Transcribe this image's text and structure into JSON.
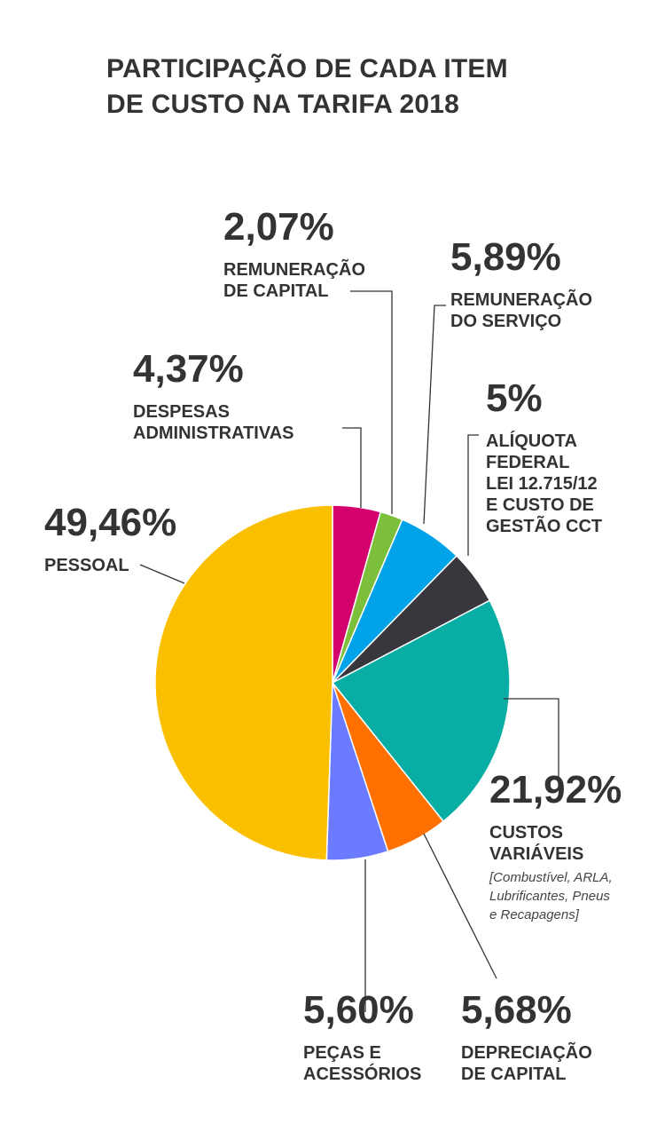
{
  "colors": {
    "text": "#333333",
    "leader": "#333333",
    "background": "#ffffff"
  },
  "chart_data": {
    "type": "pie",
    "title": "PARTICIPAÇÃO DE CADA ITEM DE CUSTO NA TARIFA 2018",
    "title_lines": [
      "PARTICIPAÇÃO DE CADA ITEM",
      "DE CUSTO NA TARIFA 2018"
    ],
    "start": "12 o'clock",
    "direction": "clockwise",
    "slices": [
      {
        "key": "despesas",
        "value": 4.37,
        "pct": "4,37%",
        "lines": [
          "DESPESAS",
          "ADMINISTRATIVAS"
        ],
        "color": "#D4006E"
      },
      {
        "key": "remcapital",
        "value": 2.07,
        "pct": "2,07%",
        "lines": [
          "REMUNERAÇÃO",
          "DE CAPITAL"
        ],
        "color": "#7CBF3B"
      },
      {
        "key": "remservico",
        "value": 5.89,
        "pct": "5,89%",
        "lines": [
          "REMUNERAÇÃO",
          "DO SERVIÇO"
        ],
        "color": "#00A3E8"
      },
      {
        "key": "aliquota",
        "value": 5.0,
        "pct": "5%",
        "lines": [
          "ALÍQUOTA",
          "FEDERAL",
          "LEI 12.715/12",
          "E CUSTO DE",
          "GESTÃO CCT"
        ],
        "color": "#37373D"
      },
      {
        "key": "custos",
        "value": 21.92,
        "pct": "21,92%",
        "lines": [
          "CUSTOS",
          "VARIÁVEIS"
        ],
        "note_lines": [
          "[Combustível, ARLA,",
          "Lubrificantes, Pneus",
          "e Recapagens]"
        ],
        "color": "#08ADA4"
      },
      {
        "key": "depreciacao",
        "value": 5.68,
        "pct": "5,68%",
        "lines": [
          "DEPRECIAÇÃO",
          "DE CAPITAL"
        ],
        "color": "#FF7000"
      },
      {
        "key": "pecas",
        "value": 5.6,
        "pct": "5,60%",
        "lines": [
          "PEÇAS E",
          "ACESSÓRIOS"
        ],
        "color": "#6B7BFF"
      },
      {
        "key": "pessoal",
        "value": 49.46,
        "pct": "49,46%",
        "lines": [
          "PESSOAL"
        ],
        "color": "#FAC000"
      }
    ]
  }
}
